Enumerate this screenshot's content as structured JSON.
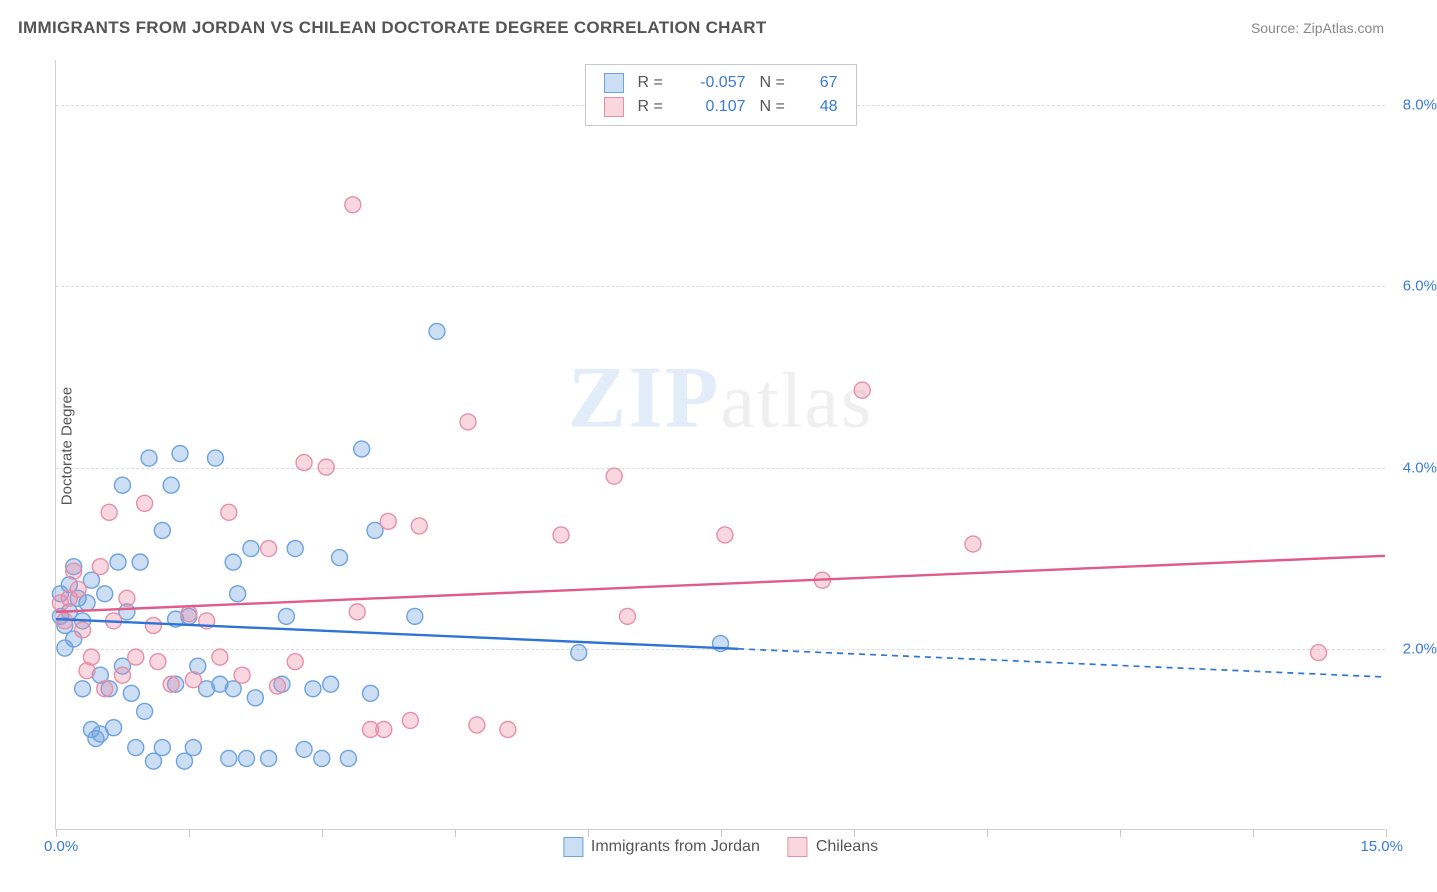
{
  "title": "IMMIGRANTS FROM JORDAN VS CHILEAN DOCTORATE DEGREE CORRELATION CHART",
  "source_label": "Source: ZipAtlas.com",
  "y_axis_label": "Doctorate Degree",
  "watermark_main": "atlas",
  "watermark_prefix": "ZIP",
  "chart": {
    "type": "scatter",
    "background_color": "#ffffff",
    "grid_color": "#dcdcdc",
    "axis_color": "#d0d0d0",
    "text_color": "#555555",
    "accent_color": "#3a7bd5",
    "title_fontsize": 17,
    "label_fontsize": 15,
    "xlim": [
      0.0,
      15.0
    ],
    "ylim": [
      0.0,
      8.5
    ],
    "x_ticks": [
      0,
      1.5,
      3.0,
      4.5,
      6.0,
      7.5,
      9.0,
      10.5,
      12.0,
      13.5,
      15.0
    ],
    "x_tick_labels_shown": {
      "min": "0.0%",
      "max": "15.0%"
    },
    "y_ticks": [
      2.0,
      4.0,
      6.0,
      8.0
    ],
    "y_tick_labels": [
      "2.0%",
      "4.0%",
      "6.0%",
      "8.0%"
    ],
    "marker_radius": 8,
    "marker_stroke_width": 1.4,
    "line_width": 2.4,
    "dash_pattern": "6,5"
  },
  "series": [
    {
      "id": "jordan",
      "label": "Immigrants from Jordan",
      "fill": "rgba(110,160,220,0.35)",
      "stroke": "#6da2e0",
      "line_color": "#2d74d6",
      "R": "-0.057",
      "N": "67",
      "trend": {
        "x1": 0.0,
        "y1": 2.32,
        "x2": 15.0,
        "y2": 1.68,
        "solid_until_x": 7.7
      },
      "points": [
        [
          0.05,
          2.35
        ],
        [
          0.05,
          2.6
        ],
        [
          0.1,
          2.25
        ],
        [
          0.1,
          2.0
        ],
        [
          0.15,
          2.7
        ],
        [
          0.15,
          2.4
        ],
        [
          0.2,
          2.9
        ],
        [
          0.2,
          2.1
        ],
        [
          0.25,
          2.55
        ],
        [
          0.3,
          2.3
        ],
        [
          0.3,
          1.55
        ],
        [
          0.35,
          2.5
        ],
        [
          0.4,
          2.75
        ],
        [
          0.4,
          1.1
        ],
        [
          0.45,
          1.0
        ],
        [
          0.5,
          1.05
        ],
        [
          0.5,
          1.7
        ],
        [
          0.55,
          2.6
        ],
        [
          0.6,
          1.55
        ],
        [
          0.65,
          1.12
        ],
        [
          0.7,
          2.95
        ],
        [
          0.75,
          3.8
        ],
        [
          0.75,
          1.8
        ],
        [
          0.8,
          2.4
        ],
        [
          0.85,
          1.5
        ],
        [
          0.9,
          0.9
        ],
        [
          0.95,
          2.95
        ],
        [
          1.0,
          1.3
        ],
        [
          1.05,
          4.1
        ],
        [
          1.1,
          0.75
        ],
        [
          1.2,
          0.9
        ],
        [
          1.2,
          3.3
        ],
        [
          1.3,
          3.8
        ],
        [
          1.35,
          1.6
        ],
        [
          1.35,
          2.32
        ],
        [
          1.4,
          4.15
        ],
        [
          1.45,
          0.75
        ],
        [
          1.5,
          2.35
        ],
        [
          1.55,
          0.9
        ],
        [
          1.6,
          1.8
        ],
        [
          1.7,
          1.55
        ],
        [
          1.8,
          4.1
        ],
        [
          1.85,
          1.6
        ],
        [
          1.95,
          0.78
        ],
        [
          2.0,
          1.55
        ],
        [
          2.0,
          2.95
        ],
        [
          2.05,
          2.6
        ],
        [
          2.15,
          0.78
        ],
        [
          2.2,
          3.1
        ],
        [
          2.25,
          1.45
        ],
        [
          2.4,
          0.78
        ],
        [
          2.55,
          1.6
        ],
        [
          2.6,
          2.35
        ],
        [
          2.7,
          3.1
        ],
        [
          2.8,
          0.88
        ],
        [
          2.9,
          1.55
        ],
        [
          3.0,
          0.78
        ],
        [
          3.1,
          1.6
        ],
        [
          3.2,
          3.0
        ],
        [
          3.3,
          0.78
        ],
        [
          3.45,
          4.2
        ],
        [
          3.55,
          1.5
        ],
        [
          3.6,
          3.3
        ],
        [
          4.05,
          2.35
        ],
        [
          4.3,
          5.5
        ],
        [
          5.9,
          1.95
        ],
        [
          7.5,
          2.05
        ]
      ]
    },
    {
      "id": "chileans",
      "label": "Chileans",
      "fill": "rgba(235,140,170,0.35)",
      "stroke": "#e88fa8",
      "line_color": "#e15a89",
      "R": "0.107",
      "N": "48",
      "trend": {
        "x1": 0.0,
        "y1": 2.4,
        "x2": 15.0,
        "y2": 3.02,
        "solid_until_x": 15.0
      },
      "points": [
        [
          0.05,
          2.5
        ],
        [
          0.1,
          2.3
        ],
        [
          0.15,
          2.55
        ],
        [
          0.2,
          2.85
        ],
        [
          0.25,
          2.65
        ],
        [
          0.3,
          2.2
        ],
        [
          0.35,
          1.75
        ],
        [
          0.4,
          1.9
        ],
        [
          0.5,
          2.9
        ],
        [
          0.55,
          1.55
        ],
        [
          0.6,
          3.5
        ],
        [
          0.65,
          2.3
        ],
        [
          0.75,
          1.7
        ],
        [
          0.8,
          2.55
        ],
        [
          0.9,
          1.9
        ],
        [
          1.0,
          3.6
        ],
        [
          1.1,
          2.25
        ],
        [
          1.15,
          1.85
        ],
        [
          1.3,
          1.6
        ],
        [
          1.5,
          2.38
        ],
        [
          1.55,
          1.65
        ],
        [
          1.7,
          2.3
        ],
        [
          1.85,
          1.9
        ],
        [
          1.95,
          3.5
        ],
        [
          2.1,
          1.7
        ],
        [
          2.4,
          3.1
        ],
        [
          2.5,
          1.58
        ],
        [
          2.7,
          1.85
        ],
        [
          2.8,
          4.05
        ],
        [
          3.05,
          4.0
        ],
        [
          3.35,
          6.9
        ],
        [
          3.4,
          2.4
        ],
        [
          3.55,
          1.1
        ],
        [
          3.7,
          1.1
        ],
        [
          3.75,
          3.4
        ],
        [
          4.0,
          1.2
        ],
        [
          4.1,
          3.35
        ],
        [
          4.65,
          4.5
        ],
        [
          4.75,
          1.15
        ],
        [
          5.1,
          1.1
        ],
        [
          5.7,
          3.25
        ],
        [
          6.3,
          3.9
        ],
        [
          6.45,
          2.35
        ],
        [
          7.55,
          3.25
        ],
        [
          8.65,
          2.75
        ],
        [
          9.1,
          4.85
        ],
        [
          10.35,
          3.15
        ],
        [
          14.25,
          1.95
        ]
      ]
    }
  ],
  "legend_top_rows": [
    {
      "swatch": "blue",
      "r": "-0.057",
      "n": "67"
    },
    {
      "swatch": "pink",
      "r": "0.107",
      "n": "48"
    }
  ],
  "r_prefix": "R =",
  "n_prefix": "N ="
}
